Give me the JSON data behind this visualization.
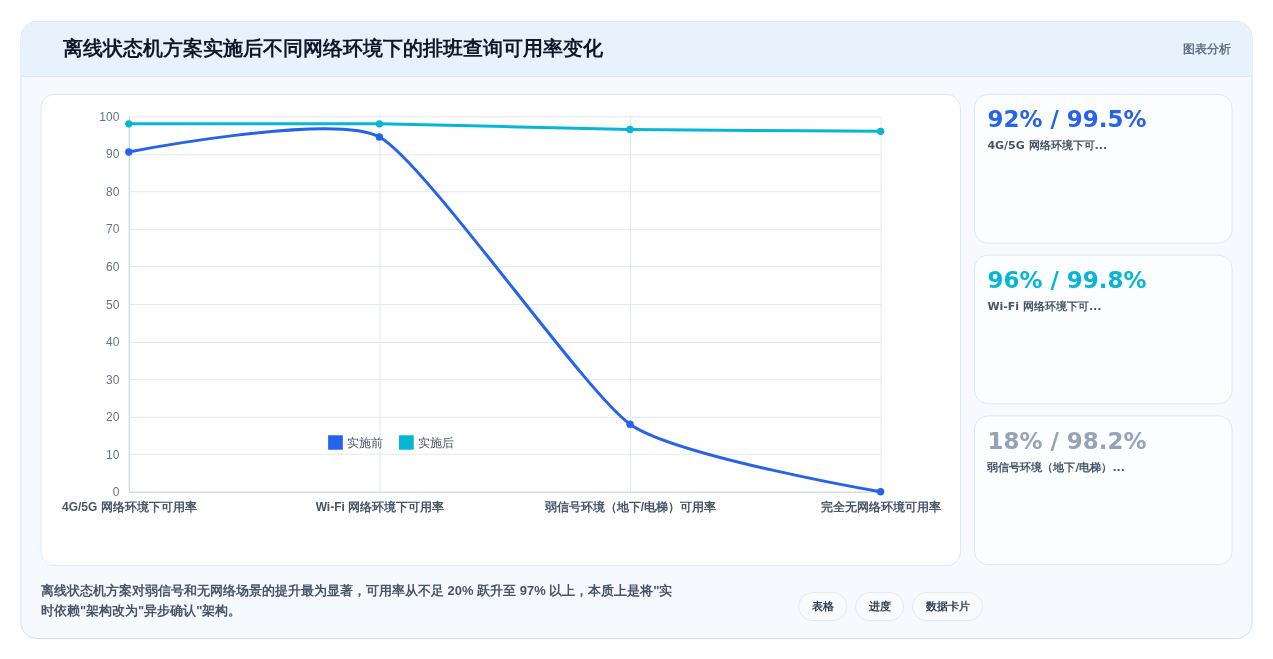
{
  "chart_data": [
    {
      "type": "line",
      "title": "离线状态机方案实施后不同网络环境下的排班查询可用率变化",
      "categories": [
        "4G/5G 网络环境下可用率",
        "Wi-Fi 网络环境下可用率",
        "弱信号环境（地下/电梯）可用率",
        "完全无网络环境可用率"
      ],
      "series": [
        {
          "name": "实施前",
          "color": "#2563eb",
          "values": [
            90.5,
            94.5,
            18,
            0
          ]
        },
        {
          "name": "实施后",
          "color": "#06b6d4",
          "values": [
            98,
            98,
            96.5,
            96
          ]
        }
      ],
      "ylim": [
        0,
        100
      ],
      "yticks": [
        0,
        10,
        20,
        30,
        40,
        50,
        60,
        70,
        80,
        90,
        100
      ],
      "grid": true,
      "legend": "bottom",
      "marker": "circle",
      "annotations": [
        "图表分析",
        "离线状态机方案对弱信号和无网络场景的提升最为显著，可用率从不足 20% 跃升至 97% 以上，本质上是将\"实时依赖\"架构改为\"异步确认\"架构。",
        "表格",
        "进度",
        "数据卡片"
      ]
    },
    {
      "type": "other",
      "title": "92% / 99.5%",
      "subtitle": "4G/5G 网络环境下可...",
      "color": "#2563eb"
    },
    {
      "type": "other",
      "title": "96% / 99.8%",
      "subtitle": "Wi-Fi 网络环境下可...",
      "color": "#06b6d4"
    },
    {
      "type": "other",
      "title": "18% / 98.2%",
      "subtitle": "弱信号环境（地下/电梯）...",
      "color": "#94a3b8"
    }
  ]
}
